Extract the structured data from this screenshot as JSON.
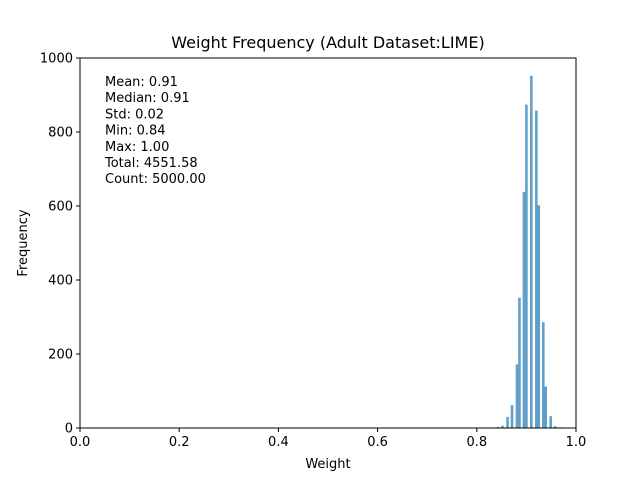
{
  "chart_data": {
    "type": "bar",
    "title": "Weight Frequency (Adult Dataset:LIME)",
    "xlabel": "Weight",
    "ylabel": "Frequency",
    "xlim": [
      0.0,
      1.0
    ],
    "ylim": [
      0,
      1000
    ],
    "grid": false,
    "x_ticks": [
      "0.0",
      "0.2",
      "0.4",
      "0.6",
      "0.8",
      "1.0"
    ],
    "y_ticks": [
      "0",
      "200",
      "400",
      "600",
      "800",
      "1000"
    ],
    "bar_color": "#1f77b4",
    "bar_alpha": 0.7,
    "stats": [
      "Mean: 0.91",
      "Median: 0.91",
      "Std: 0.02",
      "Min: 0.84",
      "Max: 1.00",
      "Total: 4551.58",
      "Count: 5000.00"
    ],
    "bins": [
      {
        "x": 0.843,
        "value": 3
      },
      {
        "x": 0.852,
        "value": 6
      },
      {
        "x": 0.862,
        "value": 30
      },
      {
        "x": 0.871,
        "value": 62
      },
      {
        "x": 0.881,
        "value": 172
      },
      {
        "x": 0.886,
        "value": 352
      },
      {
        "x": 0.895,
        "value": 638
      },
      {
        "x": 0.9,
        "value": 874
      },
      {
        "x": 0.91,
        "value": 952
      },
      {
        "x": 0.92,
        "value": 858
      },
      {
        "x": 0.925,
        "value": 602
      },
      {
        "x": 0.934,
        "value": 286
      },
      {
        "x": 0.939,
        "value": 112
      },
      {
        "x": 0.949,
        "value": 32
      },
      {
        "x": 0.958,
        "value": 5
      },
      {
        "x": 0.968,
        "value": 2
      }
    ]
  }
}
